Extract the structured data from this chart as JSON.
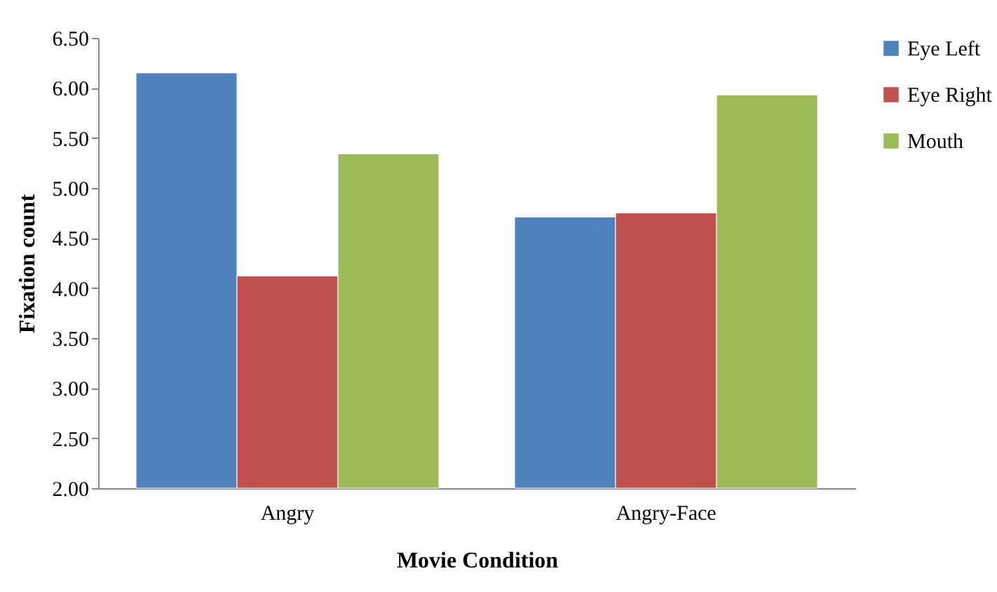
{
  "chart_data": {
    "type": "bar",
    "xlabel": "Movie Condition",
    "ylabel": "Fixation count",
    "categories": [
      "Angry",
      "Angry-Face"
    ],
    "series": [
      {
        "name": "Eye Left",
        "color": "#4f81bd",
        "values": [
          6.15,
          4.71
        ]
      },
      {
        "name": "Eye Right",
        "color": "#c0504d",
        "values": [
          4.12,
          4.75
        ]
      },
      {
        "name": "Mouth",
        "color": "#9bbb59",
        "values": [
          5.34,
          5.93
        ]
      }
    ],
    "ylim": [
      2,
      6.5
    ],
    "yticks": [
      {
        "value": 2,
        "label": "2.00"
      },
      {
        "value": 2.5,
        "label": "2.50"
      },
      {
        "value": 3,
        "label": "3.00"
      },
      {
        "value": 3.5,
        "label": "3.50"
      },
      {
        "value": 4,
        "label": "4.00"
      },
      {
        "value": 4.5,
        "label": "4.50"
      },
      {
        "value": 5,
        "label": "5.00"
      },
      {
        "value": 5.5,
        "label": "5.50"
      },
      {
        "value": 6,
        "label": "6.00"
      },
      {
        "value": 6.5,
        "label": "6.50"
      }
    ],
    "grid": false,
    "legend": "right"
  }
}
